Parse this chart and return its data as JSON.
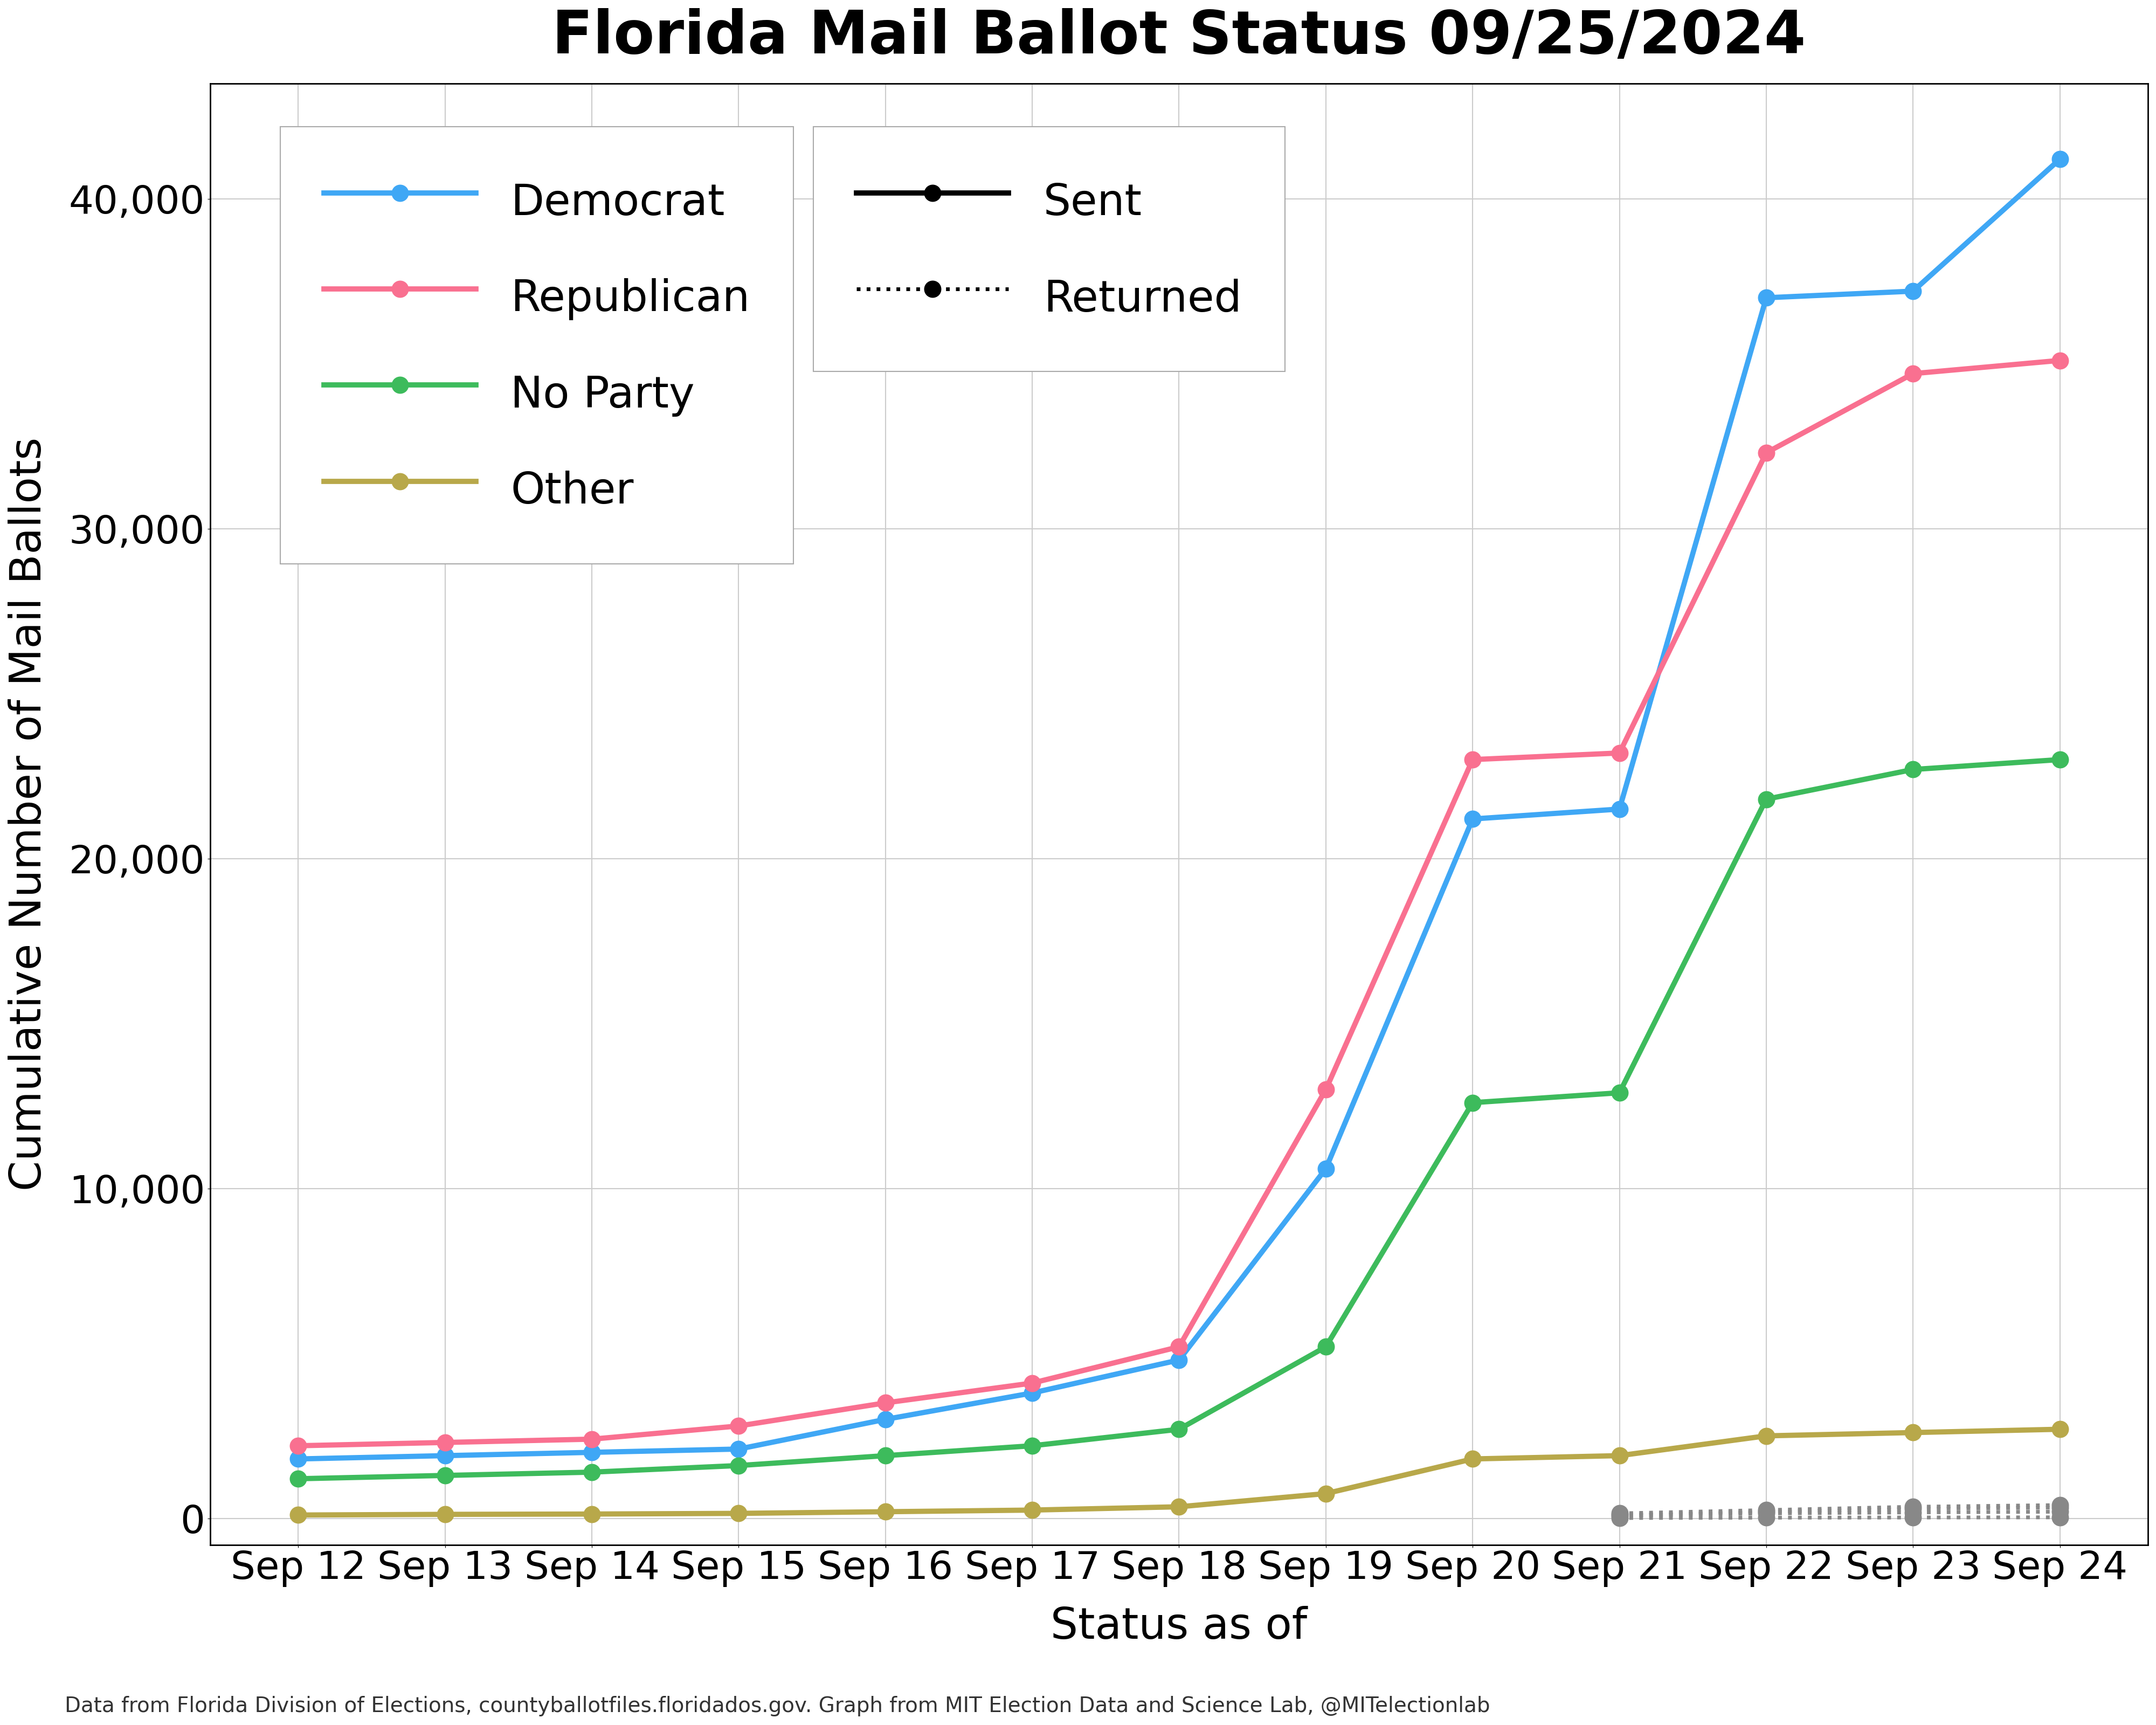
{
  "title": "Florida Mail Ballot Status 09/25/2024",
  "xlabel": "Status as of",
  "ylabel": "Cumulative Number of Mail Ballots",
  "footnote": "Data from Florida Division of Elections, countyballotfiles.floridados.gov. Graph from MIT Election Data and Science Lab, @MITelectionlab",
  "dates": [
    "Sep 12",
    "Sep 13",
    "Sep 14",
    "Sep 15",
    "Sep 16",
    "Sep 17",
    "Sep 18",
    "Sep 19",
    "Sep 20",
    "Sep 21",
    "Sep 22",
    "Sep 23",
    "Sep 24"
  ],
  "dem_sent": [
    1800,
    1900,
    2000,
    2100,
    3000,
    3800,
    4800,
    10600,
    21200,
    21500,
    37000,
    37200,
    41200
  ],
  "rep_sent": [
    2200,
    2300,
    2400,
    2800,
    3500,
    4100,
    5200,
    13000,
    23000,
    23200,
    32300,
    34700,
    35100
  ],
  "npa_sent": [
    1200,
    1300,
    1400,
    1600,
    1900,
    2200,
    2700,
    5200,
    12600,
    12900,
    21800,
    22700,
    23000
  ],
  "oth_sent": [
    100,
    120,
    130,
    150,
    200,
    250,
    350,
    750,
    1800,
    1900,
    2500,
    2600,
    2700
  ],
  "dem_ret": [
    null,
    null,
    null,
    null,
    null,
    null,
    null,
    null,
    null,
    150,
    250,
    350,
    401
  ],
  "rep_ret": [
    null,
    null,
    null,
    null,
    null,
    null,
    null,
    null,
    null,
    100,
    200,
    290,
    326
  ],
  "npa_ret": [
    null,
    null,
    null,
    null,
    null,
    null,
    null,
    null,
    null,
    80,
    150,
    180,
    200
  ],
  "oth_ret": [
    null,
    null,
    null,
    null,
    null,
    null,
    null,
    null,
    null,
    10,
    20,
    25,
    30
  ],
  "dem_color": "#3FA7F5",
  "rep_color": "#F97090",
  "npa_color": "#3DBB5C",
  "oth_color": "#B8A84A",
  "background_color": "#FFFFFF",
  "grid_color": "#CCCCCC",
  "ylim": [
    -800,
    43500
  ],
  "title_fontsize": 80,
  "label_fontsize": 58,
  "tick_fontsize": 52,
  "legend_fontsize": 58,
  "footnote_fontsize": 28,
  "linewidth": 7,
  "markersize": 22
}
